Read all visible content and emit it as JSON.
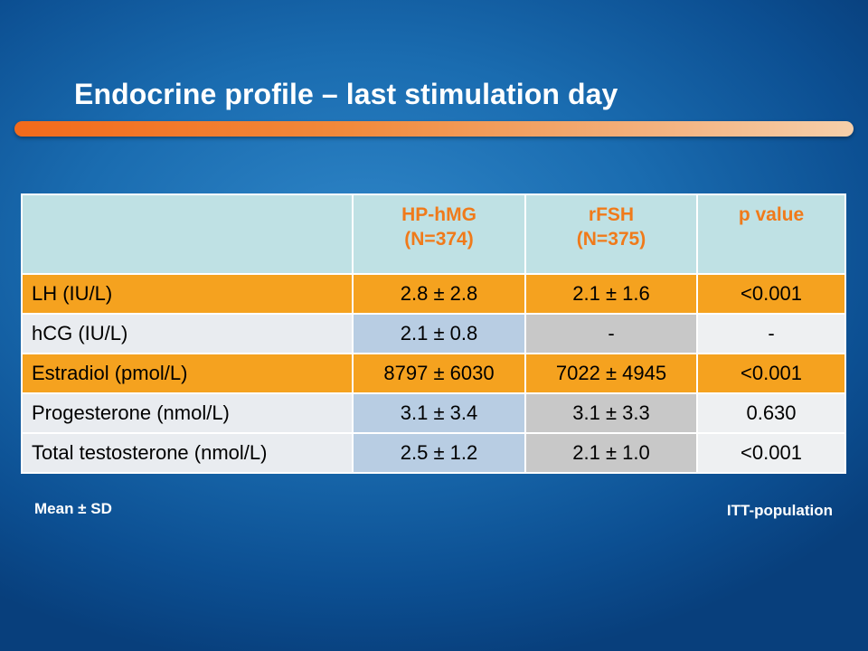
{
  "slide": {
    "title": "Endocrine profile – last stimulation day",
    "footnote_left": "Mean ± SD",
    "footnote_right": "ITT-population"
  },
  "table": {
    "headers": [
      {
        "line1": "",
        "line2": ""
      },
      {
        "line1": "HP-hMG",
        "line2": "(N=374)"
      },
      {
        "line1": "rFSH",
        "line2": "(N=375)"
      },
      {
        "line1": "p value",
        "line2": ""
      }
    ],
    "rows": [
      {
        "label": "LH (IU/L)",
        "hp_hmg": "2.8 ± 2.8",
        "rfsh": "2.1 ± 1.6",
        "p": "<0.001"
      },
      {
        "label": "hCG (IU/L)",
        "hp_hmg": "2.1 ± 0.8",
        "rfsh": "-",
        "p": "-"
      },
      {
        "label": "Estradiol (pmol/L)",
        "hp_hmg": "8797 ± 6030",
        "rfsh": "7022 ± 4945",
        "p": "<0.001"
      },
      {
        "label": "Progesterone (nmol/L)",
        "hp_hmg": "3.1 ± 3.4",
        "rfsh": "3.1 ± 3.3",
        "p": "0.630"
      },
      {
        "label": "Total testosterone (nmol/L)",
        "hp_hmg": "2.5 ± 1.2",
        "rfsh": "2.1 ± 1.0",
        "p": "<0.001"
      }
    ]
  },
  "colors": {
    "accent_orange": "#f5a21f",
    "header_teal": "#bfe1e4",
    "header_text": "#f07a1a"
  }
}
